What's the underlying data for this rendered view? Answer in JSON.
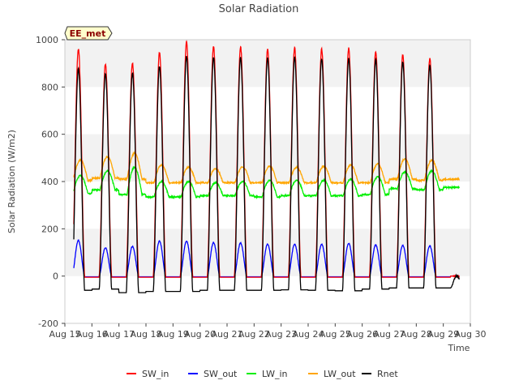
{
  "chart_data": {
    "type": "line",
    "title": "Solar Radiation",
    "ylabel": "Solar Radiation (W/m2)",
    "xlabel": "Time",
    "badge": "EE_met",
    "ylim": [
      -200,
      1000
    ],
    "yticks": [
      -200,
      0,
      200,
      400,
      600,
      800,
      1000
    ],
    "xlim": [
      15,
      30
    ],
    "xticks": [
      {
        "value": 15,
        "label": "Aug 15"
      },
      {
        "value": 16,
        "label": "Aug 16"
      },
      {
        "value": 17,
        "label": "Aug 17"
      },
      {
        "value": 18,
        "label": "Aug 18"
      },
      {
        "value": 19,
        "label": "Aug 19"
      },
      {
        "value": 20,
        "label": "Aug 20"
      },
      {
        "value": 21,
        "label": "Aug 21"
      },
      {
        "value": 22,
        "label": "Aug 22"
      },
      {
        "value": 23,
        "label": "Aug 23"
      },
      {
        "value": 24,
        "label": "Aug 24"
      },
      {
        "value": 25,
        "label": "Aug 25"
      },
      {
        "value": 26,
        "label": "Aug 26"
      },
      {
        "value": 27,
        "label": "Aug 27"
      },
      {
        "value": 28,
        "label": "Aug 28"
      },
      {
        "value": 29,
        "label": "Aug 29"
      },
      {
        "value": 30,
        "label": "Aug 30"
      }
    ],
    "grid": "horizontal bands",
    "legend_position": "bottom",
    "data_start_day": 15.33,
    "days": [
      15,
      16,
      17,
      18,
      19,
      20,
      21,
      22,
      23,
      24,
      25,
      26,
      27,
      28,
      29
    ],
    "series": [
      {
        "name": "SW_in",
        "color": "#ff0000",
        "daily_peak": [
          960,
          895,
          900,
          945,
          990,
          970,
          970,
          960,
          965,
          960,
          965,
          950,
          935,
          920,
          0
        ]
      },
      {
        "name": "SW_out",
        "color": "#0000ff",
        "daily_peak": [
          150,
          120,
          125,
          148,
          148,
          142,
          140,
          135,
          135,
          135,
          138,
          132,
          130,
          128,
          0
        ]
      },
      {
        "name": "LW_in",
        "color": "#00ee00",
        "night_base": [
          350,
          365,
          345,
          335,
          335,
          340,
          340,
          335,
          340,
          340,
          340,
          345,
          370,
          365,
          375
        ],
        "daily_peak": [
          425,
          445,
          460,
          400,
          400,
          395,
          400,
          405,
          405,
          405,
          410,
          420,
          440,
          445,
          0
        ]
      },
      {
        "name": "LW_out",
        "color": "#ffa500",
        "night_base": [
          405,
          415,
          410,
          395,
          395,
          395,
          395,
          395,
          395,
          395,
          395,
          395,
          410,
          405,
          410
        ],
        "daily_peak": [
          490,
          505,
          520,
          470,
          460,
          455,
          462,
          465,
          460,
          465,
          470,
          475,
          495,
          490,
          0
        ]
      },
      {
        "name": "Rnet",
        "color": "#000000",
        "night_base": [
          -60,
          -55,
          -70,
          -65,
          -65,
          -60,
          -60,
          -60,
          -58,
          -60,
          -62,
          -55,
          -50,
          -50,
          -50
        ],
        "daily_peak": [
          880,
          855,
          860,
          885,
          930,
          925,
          925,
          925,
          925,
          920,
          920,
          915,
          905,
          890,
          0
        ]
      }
    ]
  }
}
